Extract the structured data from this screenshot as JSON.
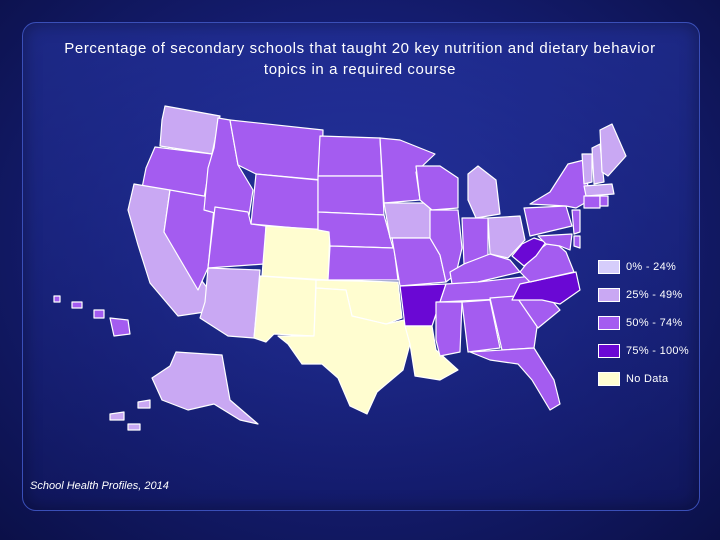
{
  "title_line1": "Percentage of secondary schools that taught 20 key nutrition and dietary behavior",
  "title_line2": "topics in a required course",
  "source": "School Health Profiles, 2014",
  "colors": {
    "c0_24": "#d6cdfb",
    "c25_49": "#c9a8f3",
    "c50_74": "#a45cf0",
    "c75_100": "#6a08d4",
    "no_data": "#fffdd0"
  },
  "legend": [
    {
      "label": "0% - 24%",
      "category": "c0_24"
    },
    {
      "label": "25% - 49%",
      "category": "c25_49"
    },
    {
      "label": "50% - 74%",
      "category": "c50_74"
    },
    {
      "label": "75% - 100%",
      "category": "c75_100"
    },
    {
      "label": "No Data",
      "category": "no_data"
    }
  ],
  "states": {
    "WA": "c25_49",
    "OR": "c50_74",
    "CA": "c25_49",
    "NV": "c50_74",
    "ID": "c50_74",
    "MT": "c50_74",
    "WY": "c50_74",
    "UT": "c50_74",
    "AZ": "c25_49",
    "CO": "no_data",
    "NM": "no_data",
    "ND": "c50_74",
    "SD": "c50_74",
    "NE": "c50_74",
    "KS": "c50_74",
    "OK": "no_data",
    "TX": "no_data",
    "MN": "c50_74",
    "IA": "c25_49",
    "MO": "c50_74",
    "AR": "c75_100",
    "LA": "no_data",
    "WI": "c50_74",
    "IL": "c50_74",
    "MI": "c25_49",
    "IN": "c50_74",
    "OH": "c25_49",
    "KY": "c50_74",
    "TN": "c50_74",
    "MS": "c50_74",
    "AL": "c50_74",
    "GA": "c50_74",
    "FL": "c50_74",
    "SC": "c50_74",
    "NC": "c75_100",
    "VA": "c50_74",
    "WV": "c75_100",
    "PA": "c50_74",
    "NY": "c50_74",
    "VT": "c25_49",
    "NH": "c25_49",
    "ME": "c25_49",
    "MA": "c25_49",
    "RI": "c50_74",
    "CT": "c50_74",
    "NJ": "c50_74",
    "DE": "c50_74",
    "MD": "c50_74",
    "AK": "c25_49",
    "HI": "c50_74"
  }
}
